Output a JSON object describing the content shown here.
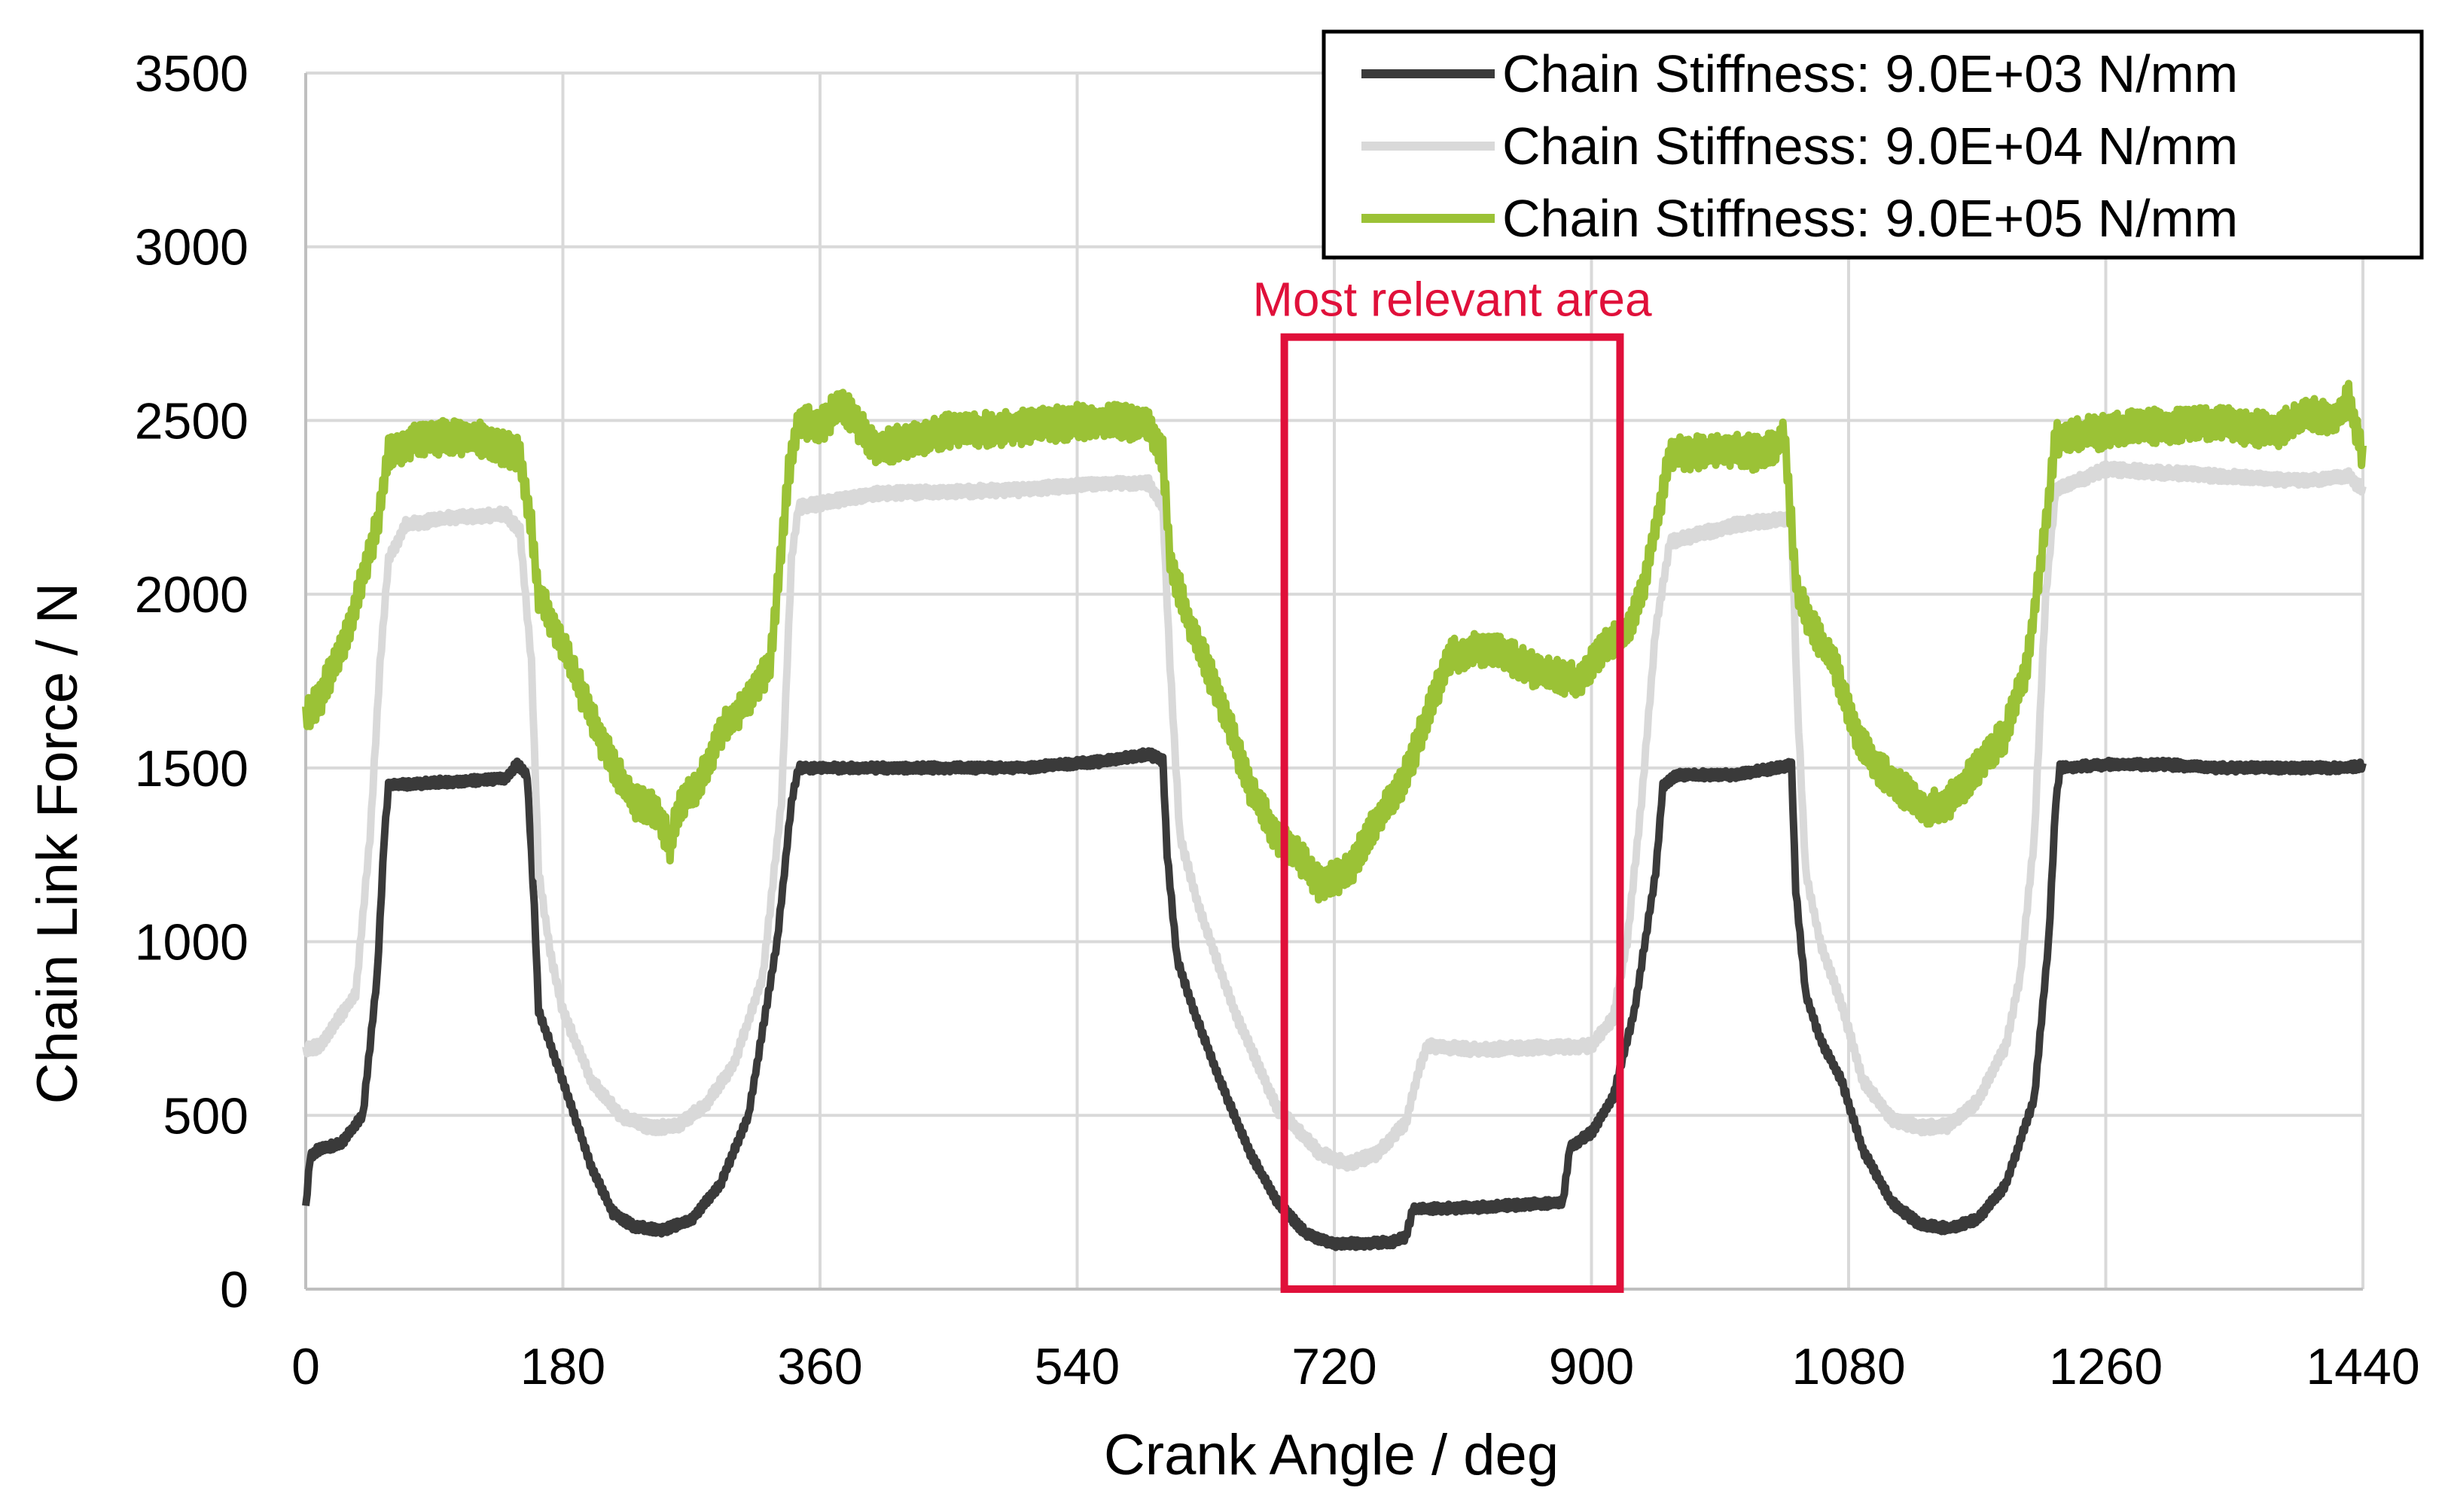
{
  "chart_data": {
    "type": "line",
    "title": "",
    "xlabel": "Crank Angle / deg",
    "ylabel": "Chain Link Force / N",
    "xlim": [
      0,
      1440
    ],
    "ylim": [
      0,
      3500
    ],
    "xticks": [
      0,
      180,
      360,
      540,
      720,
      900,
      1080,
      1260,
      1440
    ],
    "yticks": [
      0,
      500,
      1000,
      1500,
      2000,
      2500,
      3000,
      3500
    ],
    "grid": true,
    "legend_position": "top-right",
    "annotation": {
      "label": "Most relevant area",
      "x_range": [
        685,
        920
      ],
      "y_range": [
        0,
        2740
      ],
      "color": "#e0103a"
    },
    "series": [
      {
        "name": "Chain Stiffness: 9.0E+03 N/mm",
        "color": "#3a3a3a",
        "jitter": 12,
        "points": [
          [
            0,
            230
          ],
          [
            3,
            380
          ],
          [
            8,
            400
          ],
          [
            25,
            420
          ],
          [
            40,
            500
          ],
          [
            50,
            900
          ],
          [
            55,
            1300
          ],
          [
            58,
            1450
          ],
          [
            100,
            1460
          ],
          [
            140,
            1470
          ],
          [
            148,
            1510
          ],
          [
            155,
            1480
          ],
          [
            160,
            1100
          ],
          [
            163,
            800
          ],
          [
            170,
            720
          ],
          [
            180,
            600
          ],
          [
            200,
            350
          ],
          [
            215,
            220
          ],
          [
            230,
            180
          ],
          [
            250,
            170
          ],
          [
            270,
            200
          ],
          [
            290,
            300
          ],
          [
            310,
            500
          ],
          [
            330,
            1000
          ],
          [
            340,
            1400
          ],
          [
            345,
            1500
          ],
          [
            400,
            1500
          ],
          [
            500,
            1500
          ],
          [
            560,
            1520
          ],
          [
            590,
            1540
          ],
          [
            600,
            1520
          ],
          [
            603,
            1250
          ],
          [
            610,
            950
          ],
          [
            620,
            820
          ],
          [
            640,
            600
          ],
          [
            660,
            400
          ],
          [
            680,
            250
          ],
          [
            700,
            160
          ],
          [
            720,
            130
          ],
          [
            760,
            135
          ],
          [
            770,
            150
          ],
          [
            775,
            230
          ],
          [
            820,
            235
          ],
          [
            880,
            250
          ],
          [
            885,
            410
          ],
          [
            900,
            450
          ],
          [
            915,
            550
          ],
          [
            930,
            800
          ],
          [
            945,
            1200
          ],
          [
            950,
            1450
          ],
          [
            960,
            1480
          ],
          [
            1000,
            1480
          ],
          [
            1030,
            1500
          ],
          [
            1040,
            1510
          ],
          [
            1043,
            1150
          ],
          [
            1050,
            850
          ],
          [
            1060,
            720
          ],
          [
            1075,
            600
          ],
          [
            1090,
            400
          ],
          [
            1110,
            250
          ],
          [
            1130,
            185
          ],
          [
            1150,
            175
          ],
          [
            1170,
            200
          ],
          [
            1190,
            300
          ],
          [
            1210,
            550
          ],
          [
            1220,
            1000
          ],
          [
            1225,
            1400
          ],
          [
            1228,
            1500
          ],
          [
            1260,
            1510
          ],
          [
            1300,
            1510
          ],
          [
            1340,
            1500
          ],
          [
            1380,
            1500
          ],
          [
            1420,
            1500
          ],
          [
            1440,
            1505
          ]
        ]
      },
      {
        "name": "Chain Stiffness: 9.0E+04 N/mm",
        "color": "#d9d9d9",
        "jitter": 16,
        "points": [
          [
            0,
            690
          ],
          [
            10,
            700
          ],
          [
            20,
            760
          ],
          [
            35,
            850
          ],
          [
            45,
            1300
          ],
          [
            52,
            1800
          ],
          [
            58,
            2100
          ],
          [
            70,
            2200
          ],
          [
            100,
            2220
          ],
          [
            140,
            2230
          ],
          [
            150,
            2180
          ],
          [
            158,
            1800
          ],
          [
            163,
            1200
          ],
          [
            172,
            950
          ],
          [
            180,
            800
          ],
          [
            200,
            600
          ],
          [
            220,
            500
          ],
          [
            240,
            465
          ],
          [
            260,
            470
          ],
          [
            280,
            530
          ],
          [
            300,
            650
          ],
          [
            320,
            900
          ],
          [
            333,
            1400
          ],
          [
            340,
            2100
          ],
          [
            345,
            2250
          ],
          [
            400,
            2290
          ],
          [
            500,
            2300
          ],
          [
            560,
            2320
          ],
          [
            590,
            2320
          ],
          [
            600,
            2250
          ],
          [
            605,
            1800
          ],
          [
            612,
            1300
          ],
          [
            625,
            1100
          ],
          [
            650,
            800
          ],
          [
            680,
            520
          ],
          [
            710,
            390
          ],
          [
            730,
            360
          ],
          [
            750,
            390
          ],
          [
            770,
            480
          ],
          [
            780,
            640
          ],
          [
            785,
            700
          ],
          [
            820,
            690
          ],
          [
            900,
            700
          ],
          [
            915,
            780
          ],
          [
            925,
            1000
          ],
          [
            935,
            1400
          ],
          [
            945,
            1900
          ],
          [
            955,
            2150
          ],
          [
            1000,
            2200
          ],
          [
            1040,
            2220
          ],
          [
            1044,
            1700
          ],
          [
            1050,
            1200
          ],
          [
            1060,
            1000
          ],
          [
            1075,
            820
          ],
          [
            1090,
            600
          ],
          [
            1110,
            490
          ],
          [
            1130,
            465
          ],
          [
            1150,
            470
          ],
          [
            1170,
            540
          ],
          [
            1190,
            700
          ],
          [
            1200,
            900
          ],
          [
            1210,
            1300
          ],
          [
            1218,
            2000
          ],
          [
            1225,
            2300
          ],
          [
            1260,
            2360
          ],
          [
            1300,
            2350
          ],
          [
            1340,
            2340
          ],
          [
            1380,
            2330
          ],
          [
            1410,
            2330
          ],
          [
            1430,
            2340
          ],
          [
            1440,
            2300
          ]
        ]
      },
      {
        "name": "Chain Stiffness: 9.0E+05 N/mm",
        "color": "#9bc236",
        "jitter": 50,
        "points": [
          [
            0,
            1650
          ],
          [
            10,
            1700
          ],
          [
            20,
            1800
          ],
          [
            30,
            1900
          ],
          [
            40,
            2050
          ],
          [
            50,
            2200
          ],
          [
            58,
            2400
          ],
          [
            80,
            2450
          ],
          [
            120,
            2450
          ],
          [
            150,
            2400
          ],
          [
            158,
            2200
          ],
          [
            163,
            2000
          ],
          [
            175,
            1900
          ],
          [
            190,
            1750
          ],
          [
            210,
            1550
          ],
          [
            230,
            1400
          ],
          [
            245,
            1380
          ],
          [
            255,
            1280
          ],
          [
            262,
            1400
          ],
          [
            275,
            1450
          ],
          [
            290,
            1600
          ],
          [
            310,
            1700
          ],
          [
            325,
            1800
          ],
          [
            338,
            2350
          ],
          [
            345,
            2500
          ],
          [
            360,
            2480
          ],
          [
            375,
            2550
          ],
          [
            400,
            2420
          ],
          [
            450,
            2470
          ],
          [
            500,
            2480
          ],
          [
            550,
            2500
          ],
          [
            590,
            2490
          ],
          [
            600,
            2400
          ],
          [
            605,
            2100
          ],
          [
            620,
            1900
          ],
          [
            640,
            1700
          ],
          [
            660,
            1450
          ],
          [
            680,
            1300
          ],
          [
            695,
            1250
          ],
          [
            710,
            1160
          ],
          [
            730,
            1200
          ],
          [
            750,
            1350
          ],
          [
            770,
            1480
          ],
          [
            785,
            1650
          ],
          [
            800,
            1820
          ],
          [
            830,
            1850
          ],
          [
            860,
            1780
          ],
          [
            890,
            1750
          ],
          [
            910,
            1850
          ],
          [
            925,
            1900
          ],
          [
            935,
            2000
          ],
          [
            945,
            2200
          ],
          [
            955,
            2400
          ],
          [
            1000,
            2420
          ],
          [
            1020,
            2400
          ],
          [
            1035,
            2450
          ],
          [
            1044,
            2000
          ],
          [
            1055,
            1900
          ],
          [
            1070,
            1800
          ],
          [
            1085,
            1600
          ],
          [
            1100,
            1500
          ],
          [
            1120,
            1430
          ],
          [
            1135,
            1380
          ],
          [
            1150,
            1400
          ],
          [
            1170,
            1500
          ],
          [
            1190,
            1600
          ],
          [
            1205,
            1800
          ],
          [
            1215,
            2100
          ],
          [
            1225,
            2450
          ],
          [
            1280,
            2480
          ],
          [
            1340,
            2490
          ],
          [
            1380,
            2470
          ],
          [
            1400,
            2520
          ],
          [
            1420,
            2500
          ],
          [
            1430,
            2560
          ],
          [
            1440,
            2400
          ]
        ]
      }
    ]
  }
}
